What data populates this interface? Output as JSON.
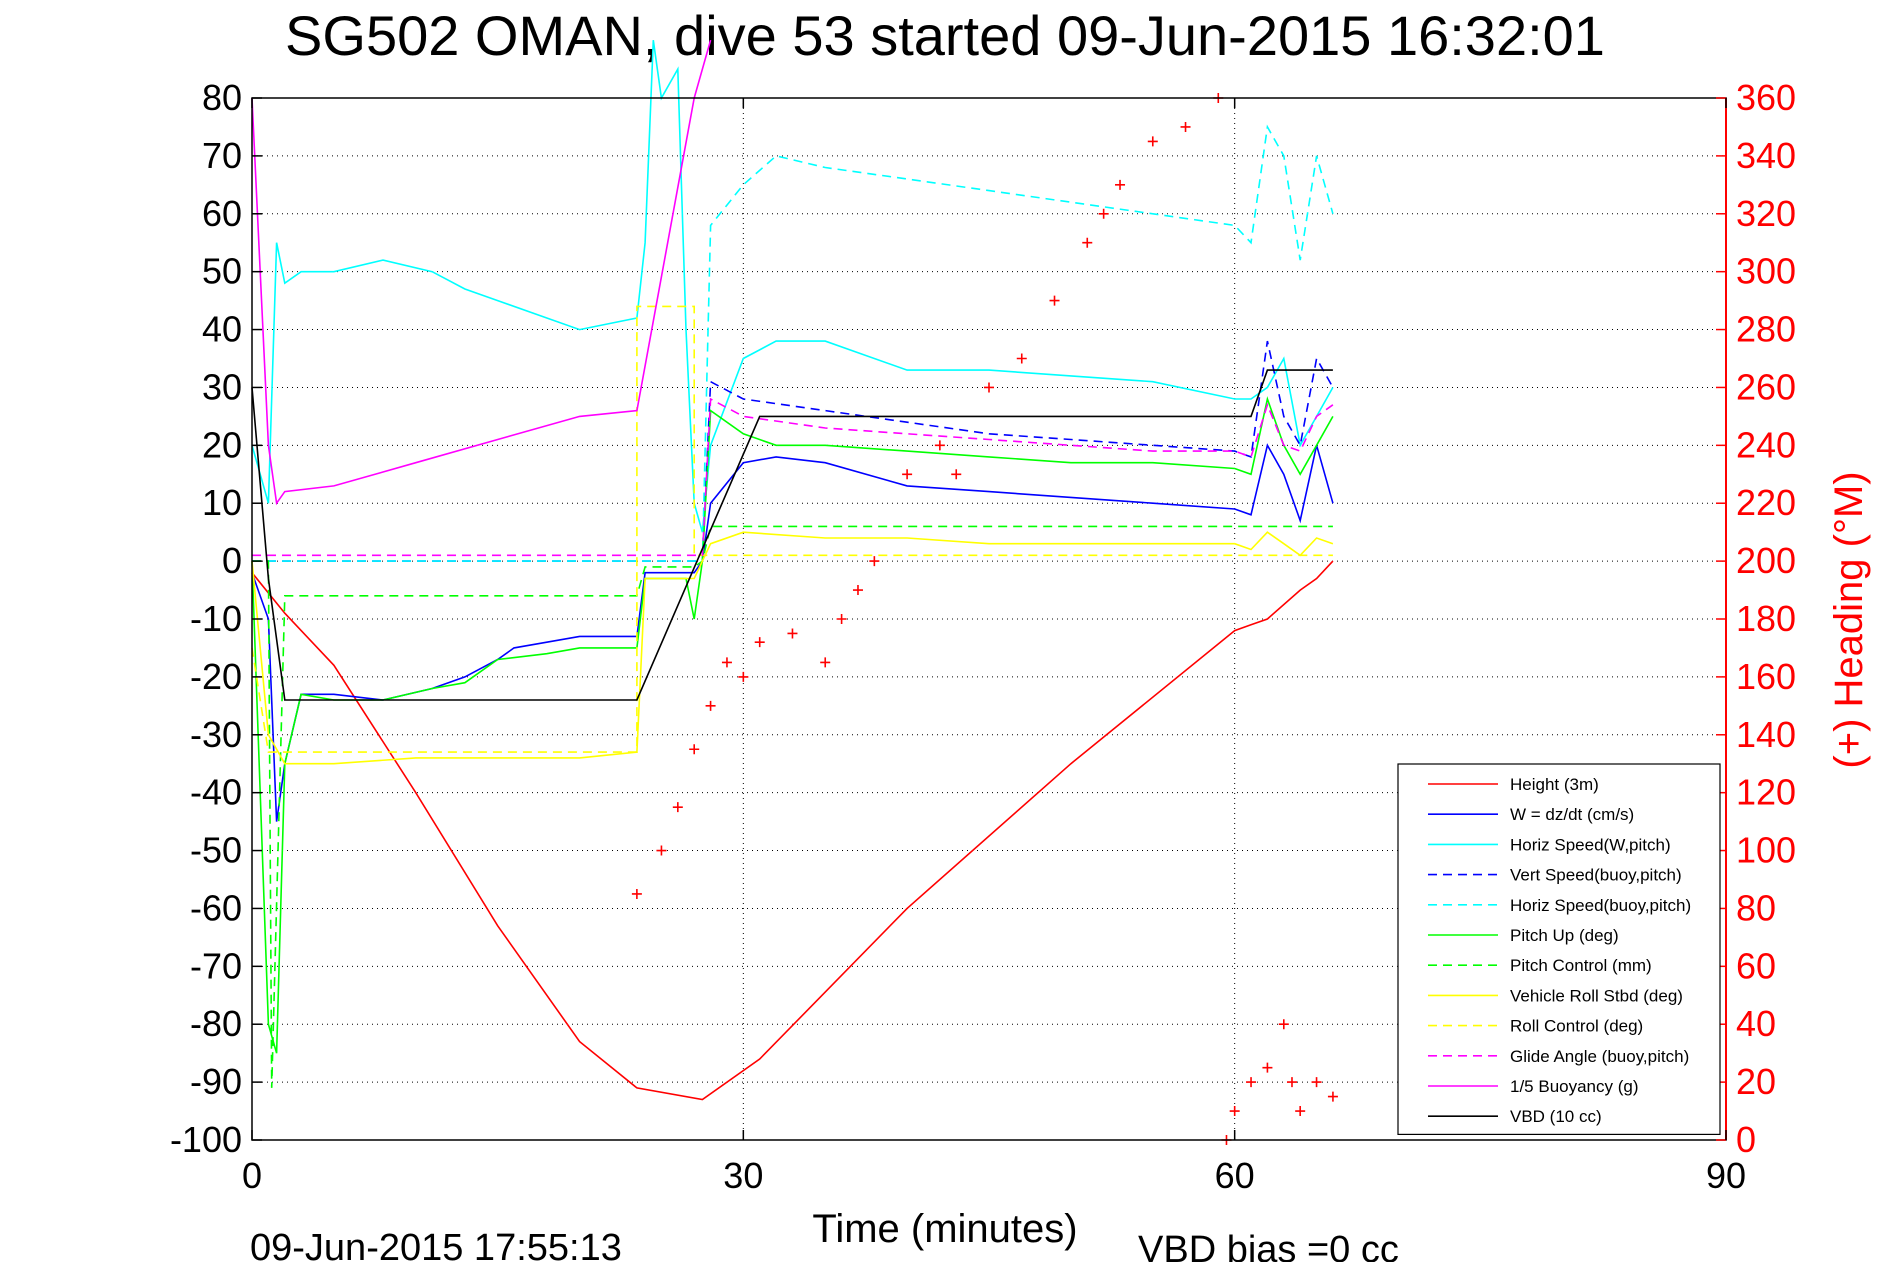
{
  "chart_data": {
    "type": "line",
    "title": "SG502 OMAN, dive 53 started 09-Jun-2015 16:32:01",
    "xlabel": "Time (minutes)",
    "ylabel": "",
    "ylabel_right": "(+) Heading (°M)",
    "footer_left": "09-Jun-2015 17:55:13",
    "footer_right": "VBD bias =0 cc",
    "xlim": [
      0,
      90
    ],
    "ylim": [
      -100,
      80
    ],
    "ylim_right": [
      0,
      360
    ],
    "xticks": [
      "0",
      "30",
      "60",
      "90"
    ],
    "yticks": [
      "80",
      "70",
      "60",
      "50",
      "40",
      "30",
      "20",
      "10",
      "0",
      "-10",
      "-20",
      "-30",
      "-40",
      "-50",
      "-60",
      "-70",
      "-80",
      "-90",
      "-100"
    ],
    "yticks_right": [
      "360",
      "340",
      "320",
      "300",
      "280",
      "260",
      "240",
      "220",
      "200",
      "180",
      "160",
      "140",
      "120",
      "100",
      "80",
      "60",
      "40",
      "20",
      "0"
    ],
    "grid": true,
    "legend_position": "bottom-right",
    "series": [
      {
        "name": "Height (3m)",
        "color": "#ff0000",
        "style": "solid",
        "x": [
          0,
          2,
          5,
          10,
          15,
          20,
          23.5,
          27.5,
          31,
          40,
          50,
          60,
          61,
          62,
          64,
          65,
          66
        ],
        "y": [
          -2,
          -9,
          -18,
          -40,
          -63,
          -83,
          -91,
          -93,
          -86,
          -60,
          -35,
          -12,
          -11,
          -10,
          -5,
          -3,
          0
        ]
      },
      {
        "name": "W = dz/dt (cm/s)",
        "color": "#0000ff",
        "style": "solid",
        "x": [
          0,
          1,
          1.5,
          2,
          3,
          5,
          8,
          11,
          13,
          15,
          16,
          18,
          20,
          23.5,
          24,
          27,
          27.5,
          28,
          30,
          32,
          35,
          40,
          45,
          50,
          55,
          60,
          61,
          62,
          63,
          64,
          65,
          66
        ],
        "y": [
          -2,
          -10,
          -45,
          -35,
          -23,
          -23,
          -24,
          -22,
          -20,
          -17,
          -15,
          -14,
          -13,
          -13,
          -2,
          -2,
          0,
          10,
          17,
          18,
          17,
          13,
          12,
          11,
          10,
          9,
          8,
          20,
          15,
          7,
          20,
          10
        ]
      },
      {
        "name": "Horiz Speed(W,pitch)",
        "color": "#00ffff",
        "style": "solid",
        "x": [
          0,
          1,
          1.5,
          2,
          3,
          5,
          8,
          11,
          13,
          15,
          18,
          20,
          23.5,
          24,
          24.5,
          25,
          26,
          26.5,
          27,
          27.5,
          28,
          30,
          32,
          35,
          40,
          45,
          50,
          55,
          60,
          61,
          62,
          63,
          64,
          65,
          66
        ],
        "y": [
          20,
          10,
          55,
          48,
          50,
          50,
          52,
          50,
          47,
          45,
          42,
          40,
          42,
          55,
          90,
          80,
          85,
          40,
          10,
          5,
          20,
          35,
          38,
          38,
          33,
          33,
          32,
          31,
          28,
          28,
          30,
          35,
          20,
          25,
          30
        ]
      },
      {
        "name": "Vert Speed(buoy,pitch)",
        "color": "#0000ff",
        "style": "dashed",
        "x": [
          0,
          1,
          2,
          23.5,
          27,
          27.5,
          28,
          30,
          35,
          40,
          45,
          50,
          55,
          60,
          61,
          62,
          63,
          64,
          65,
          66
        ],
        "y": [
          0,
          0,
          0,
          0,
          0,
          0,
          31,
          28,
          26,
          24,
          22,
          21,
          20,
          19,
          18,
          38,
          25,
          20,
          35,
          30
        ]
      },
      {
        "name": "Horiz Speed(buoy,pitch)",
        "color": "#00ffff",
        "style": "dashed",
        "x": [
          0,
          1,
          2,
          23.5,
          27,
          27.5,
          28,
          30,
          32,
          35,
          40,
          45,
          50,
          55,
          60,
          61,
          62,
          63,
          64,
          65,
          66
        ],
        "y": [
          0,
          0,
          0,
          0,
          0,
          0,
          58,
          65,
          70,
          68,
          66,
          64,
          62,
          60,
          58,
          55,
          75,
          70,
          52,
          70,
          60
        ]
      },
      {
        "name": "Pitch Up (deg)",
        "color": "#00ff00",
        "style": "solid",
        "x": [
          0,
          1,
          1.5,
          2,
          3,
          5,
          8,
          11,
          13,
          15,
          18,
          20,
          23.5,
          24,
          26.5,
          27,
          27.5,
          28,
          30,
          32,
          35,
          40,
          45,
          50,
          55,
          60,
          61,
          62,
          63,
          64,
          65,
          66
        ],
        "y": [
          0,
          -80,
          -85,
          -35,
          -23,
          -24,
          -24,
          -22,
          -21,
          -17,
          -16,
          -15,
          -15,
          -3,
          -3,
          -10,
          0,
          26,
          22,
          20,
          20,
          19,
          18,
          17,
          17,
          16,
          15,
          28,
          20,
          15,
          20,
          25
        ]
      },
      {
        "name": "Pitch Control (mm)",
        "color": "#00ff00",
        "style": "dashed",
        "x": [
          0,
          1,
          1.2,
          2,
          23.5,
          24,
          27,
          27.5,
          28,
          66
        ],
        "y": [
          0,
          0,
          -91,
          -6,
          -6,
          -1,
          -1,
          0,
          6,
          6
        ]
      },
      {
        "name": "Vehicle Roll Stbd (deg)",
        "color": "#ffff00",
        "style": "solid",
        "x": [
          0,
          1,
          2,
          5,
          10,
          15,
          20,
          23.5,
          24,
          27,
          28,
          30,
          35,
          40,
          45,
          50,
          55,
          60,
          61,
          62,
          63,
          64,
          65,
          66
        ],
        "y": [
          0,
          -30,
          -35,
          -35,
          -34,
          -34,
          -34,
          -33,
          -3,
          -3,
          3,
          5,
          4,
          4,
          3,
          3,
          3,
          3,
          2,
          5,
          3,
          1,
          4,
          3
        ]
      },
      {
        "name": "Roll Control (deg)",
        "color": "#ffff00",
        "style": "dashed",
        "x": [
          0,
          1,
          2,
          23.5,
          23.5,
          27,
          27,
          66
        ],
        "y": [
          -15,
          -33,
          -33,
          -33,
          44,
          44,
          1,
          1
        ]
      },
      {
        "name": "Glide Angle (buoy,pitch)",
        "color": "#ff00ff",
        "style": "dashed",
        "x": [
          0,
          1,
          2,
          23.5,
          27,
          27.5,
          28,
          30,
          35,
          40,
          45,
          50,
          55,
          60,
          61,
          62,
          63,
          64,
          65,
          66
        ],
        "y": [
          1,
          1,
          1,
          1,
          1,
          1,
          28,
          25,
          23,
          22,
          21,
          20,
          19,
          19,
          18,
          27,
          20,
          19,
          25,
          27
        ]
      },
      {
        "name": "1/5 Buoyancy (g)",
        "color": "#ff00ff",
        "style": "solid",
        "x": [
          0,
          0.5,
          1,
          1.5,
          2,
          5,
          10,
          15,
          20,
          23.5,
          27,
          28
        ],
        "y": [
          80,
          50,
          20,
          10,
          12,
          13,
          17,
          21,
          25,
          26,
          80,
          90
        ]
      },
      {
        "name": "VBD (10 cc)",
        "color": "#000000",
        "style": "solid",
        "x": [
          0,
          1,
          2,
          23.5,
          31,
          61,
          62,
          66
        ],
        "y": [
          30,
          -3,
          -24,
          -24,
          25,
          25,
          33,
          33
        ]
      }
    ],
    "heading_series": {
      "name": "(+) Heading (°M)",
      "color": "#ff0000",
      "marker": "+",
      "x": [
        23.5,
        25,
        26,
        27,
        28,
        29,
        30,
        31,
        33,
        35,
        36,
        37,
        38,
        40,
        42,
        43,
        45,
        47,
        49,
        51,
        52,
        53,
        55,
        57,
        59,
        59.5,
        60,
        61,
        62,
        63,
        63.5,
        64,
        65,
        66
      ],
      "y": [
        85,
        100,
        115,
        135,
        150,
        165,
        160,
        172,
        175,
        165,
        180,
        190,
        200,
        230,
        240,
        230,
        260,
        270,
        290,
        310,
        320,
        330,
        345,
        350,
        360,
        0,
        10,
        20,
        25,
        40,
        20,
        10,
        20,
        15
      ]
    }
  },
  "legend": {
    "entries": [
      {
        "label": "Height (3m)",
        "color": "#ff0000",
        "style": "solid"
      },
      {
        "label": "W = dz/dt (cm/s)",
        "color": "#0000ff",
        "style": "solid"
      },
      {
        "label": "Horiz Speed(W,pitch)",
        "color": "#00ffff",
        "style": "solid"
      },
      {
        "label": "Vert Speed(buoy,pitch)",
        "color": "#0000ff",
        "style": "dashed"
      },
      {
        "label": "Horiz Speed(buoy,pitch)",
        "color": "#00ffff",
        "style": "dashed"
      },
      {
        "label": "Pitch Up (deg)",
        "color": "#00ff00",
        "style": "solid"
      },
      {
        "label": "Pitch Control (mm)",
        "color": "#00ff00",
        "style": "dashed"
      },
      {
        "label": "Vehicle Roll Stbd (deg)",
        "color": "#ffff00",
        "style": "solid"
      },
      {
        "label": "Roll Control (deg)",
        "color": "#ffff00",
        "style": "dashed"
      },
      {
        "label": "Glide Angle (buoy,pitch)",
        "color": "#ff00ff",
        "style": "dashed"
      },
      {
        "label": "1/5 Buoyancy (g)",
        "color": "#ff00ff",
        "style": "solid"
      },
      {
        "label": "VBD (10 cc)",
        "color": "#000000",
        "style": "solid"
      }
    ]
  }
}
